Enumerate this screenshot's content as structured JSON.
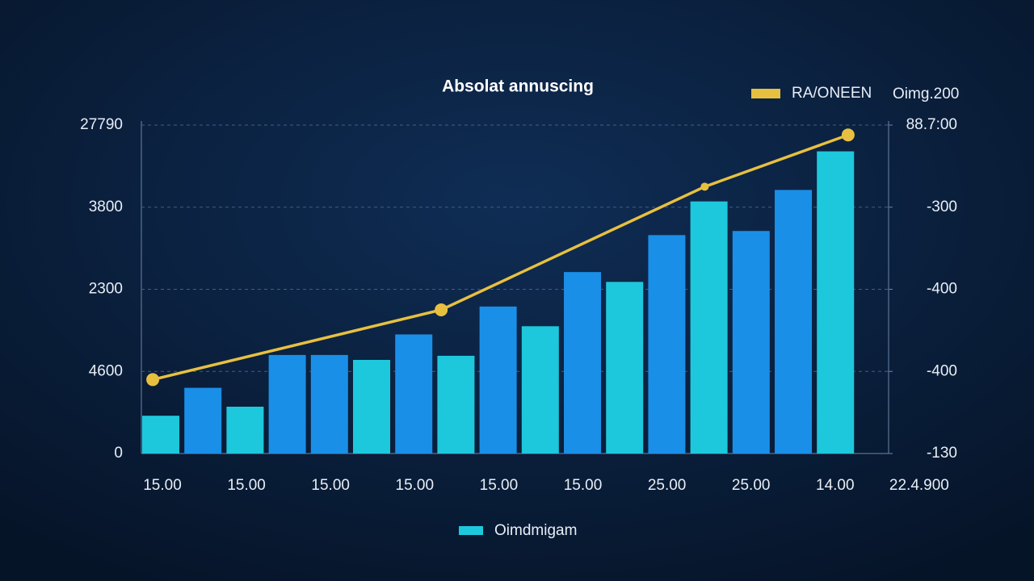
{
  "chart_data": {
    "type": "bar_line",
    "title": "Absolat annuscing",
    "note": "Oimg.200",
    "categories": [
      null,
      null,
      null,
      null,
      null,
      null,
      null,
      null,
      null,
      null,
      null,
      null,
      null,
      null,
      null,
      null,
      null
    ],
    "xlim": [
      -0.46,
      17.26
    ],
    "x_labels": [
      "15.00",
      "15.00",
      "15.00",
      "15.00",
      "15.00",
      "15.00",
      "25.00",
      "25.00",
      "14.00",
      "22.4.900"
    ],
    "ylim": [
      0,
      4
    ],
    "yticks": [
      0,
      {
        "value": 1,
        "label": "4600"
      },
      {
        "value": 2,
        "label": "2300"
      },
      {
        "value": 3,
        "label": "3800"
      },
      {
        "value": 4,
        "label": "27790"
      }
    ],
    "y2lim": [
      0,
      4
    ],
    "y2ticks": [
      {
        "value": 0,
        "label": "-130"
      },
      {
        "value": 1,
        "label": "-400"
      },
      {
        "value": 2,
        "label": "-400"
      },
      {
        "value": 3,
        "label": "-300"
      },
      {
        "value": 4,
        "label": "88.7:00"
      }
    ],
    "grid": true,
    "series": [
      {
        "name": "Oimdmigam",
        "kind": "bar",
        "color": "#1ec8dc",
        "colors": [
          "#1ec8dc",
          "#1a8fe8",
          "#1ec8dc",
          "#1a8fe8",
          "#1a8fe8",
          "#1ec8dc",
          "#1a8fe8",
          "#1ec8dc",
          "#1a8fe8",
          "#1ec8dc",
          "#1a8fe8",
          "#1ec8dc",
          "#1a8fe8",
          "#1ec8dc",
          "#1a8fe8",
          "#1a8fe8",
          "#1ec8dc"
        ],
        "values": [
          0.46,
          0.8,
          0.57,
          1.2,
          1.2,
          1.14,
          1.45,
          1.19,
          1.79,
          1.55,
          2.21,
          2.09,
          2.66,
          3.07,
          2.71,
          3.21,
          3.68
        ]
      },
      {
        "name": "RA/ONEEN",
        "kind": "line",
        "axis": "y2",
        "color": "#e8c040",
        "x": [
          -0.19,
          6.65,
          12.9,
          16.3
        ],
        "values": [
          0.9,
          1.75,
          3.25,
          3.88
        ]
      }
    ]
  }
}
